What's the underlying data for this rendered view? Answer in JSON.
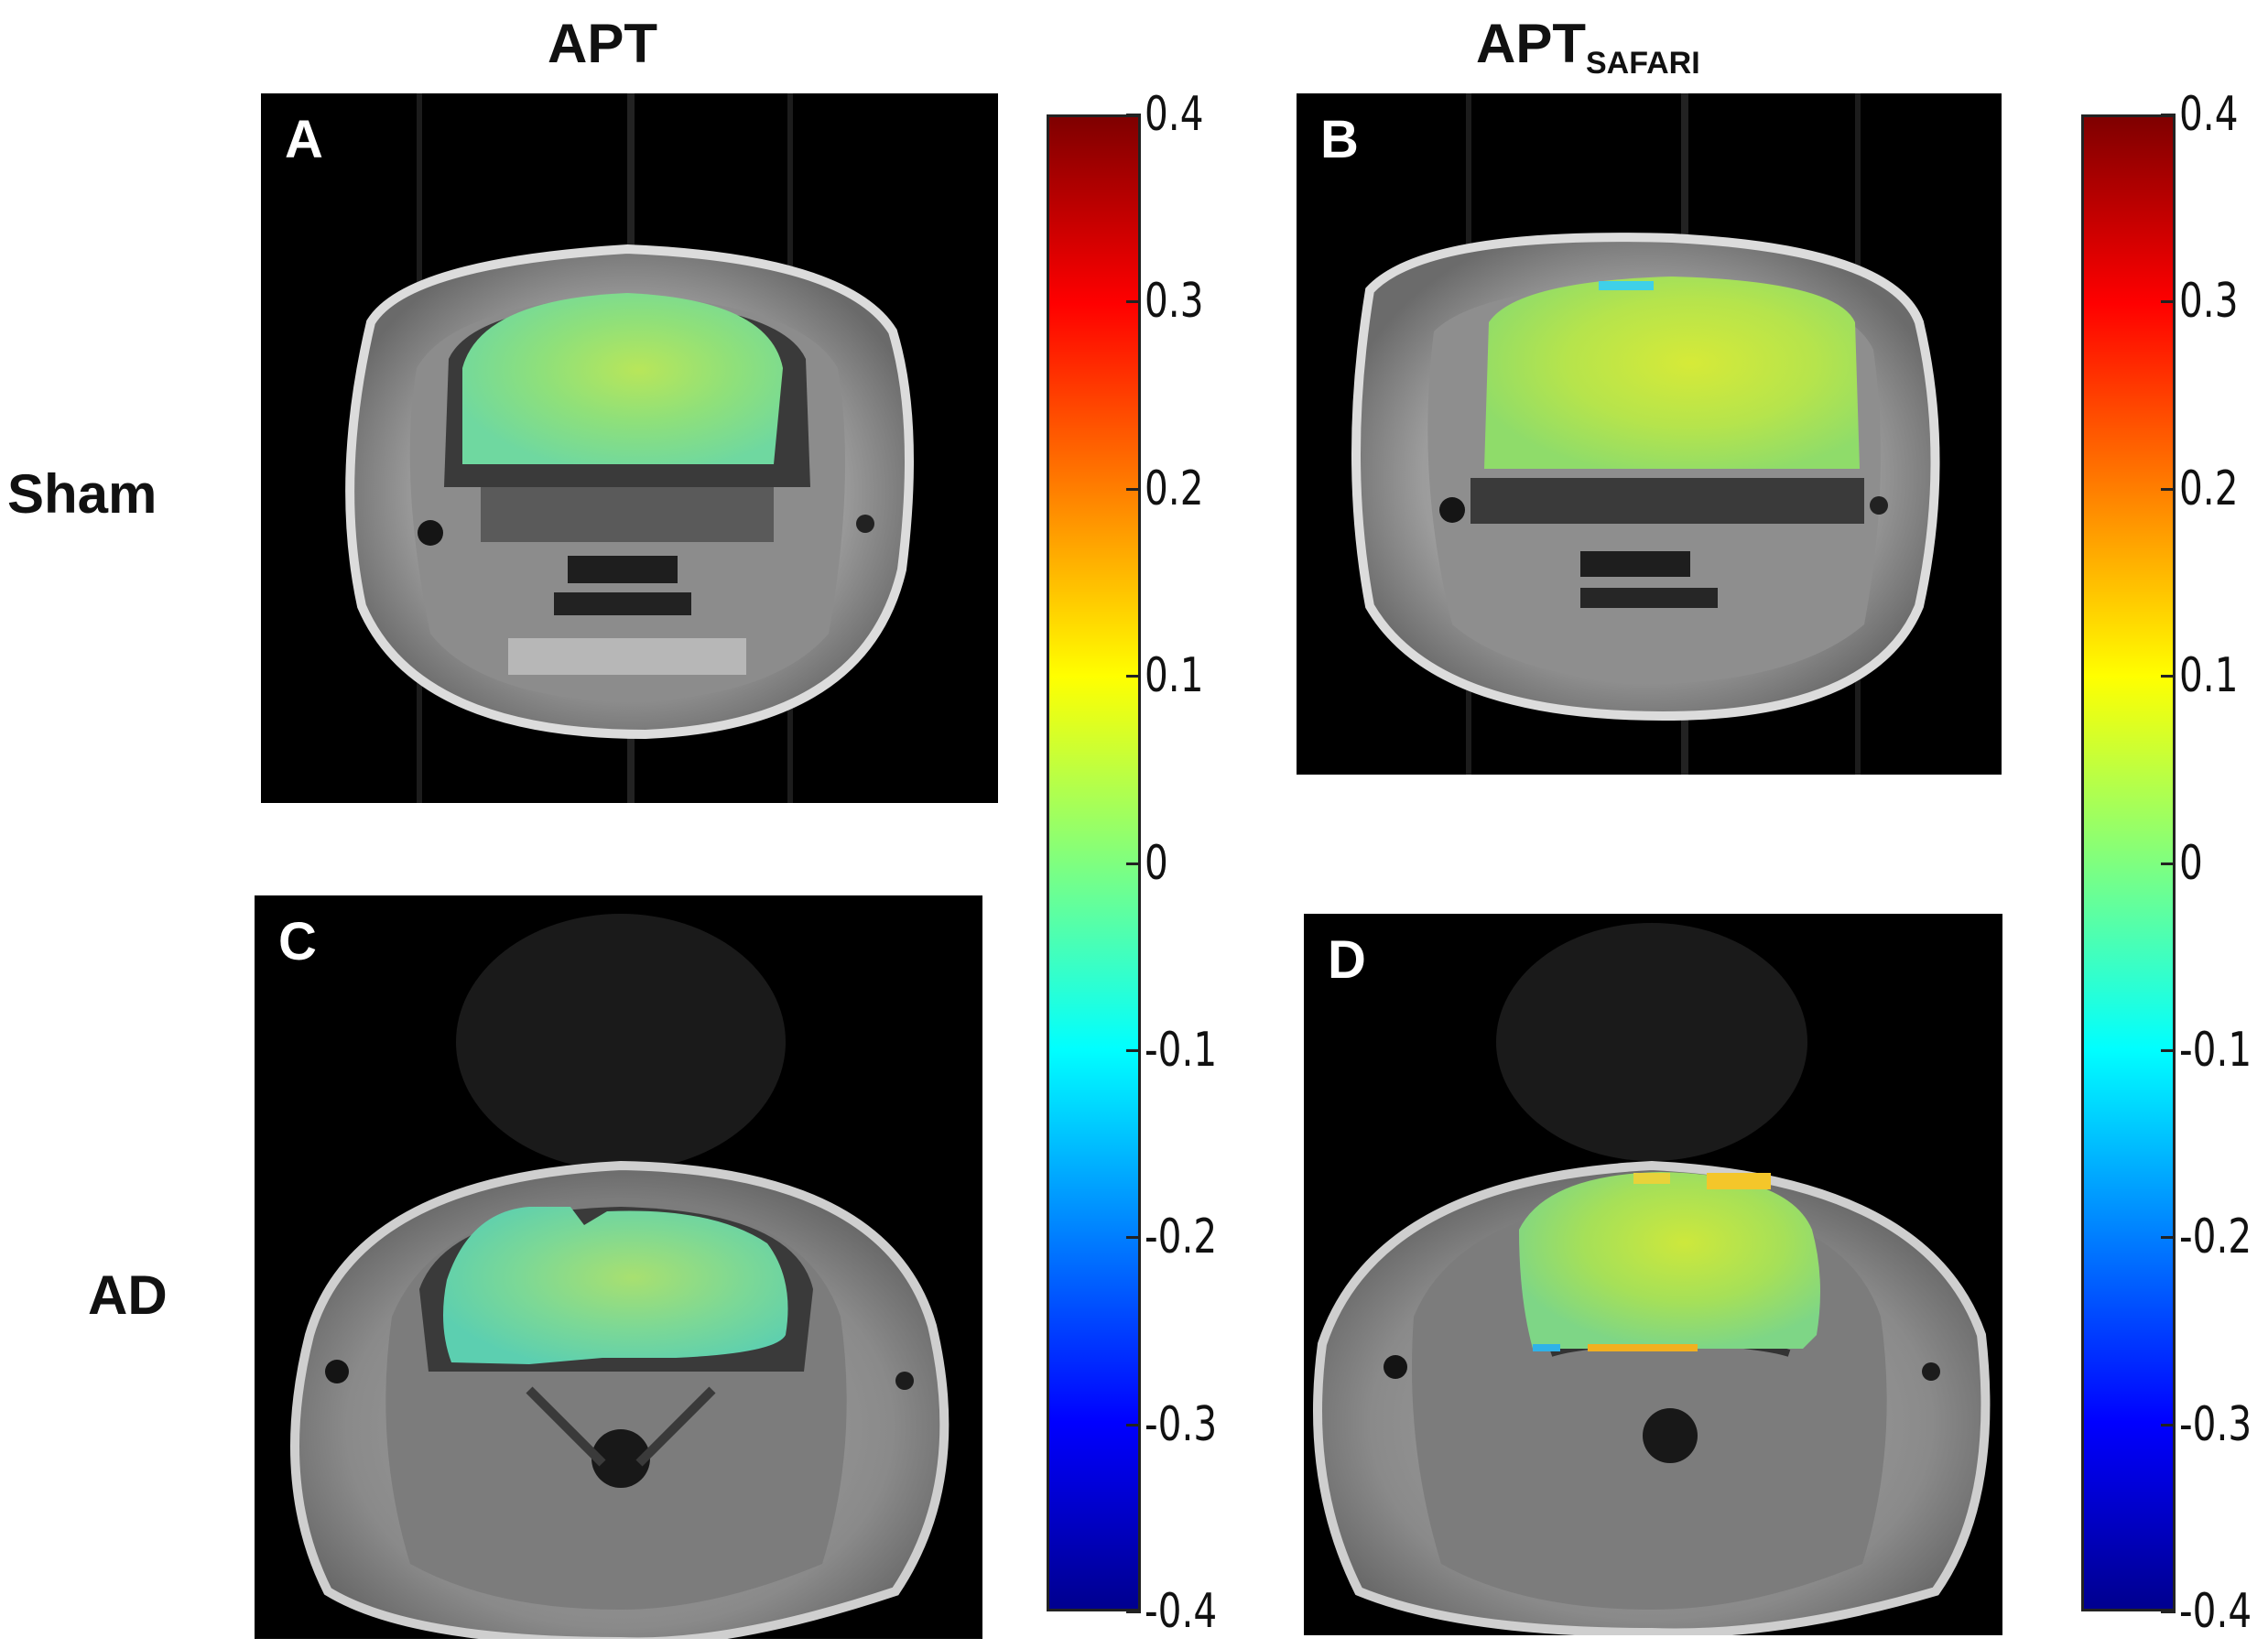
{
  "columns": {
    "apt": {
      "title": "APT"
    },
    "apt_safari": {
      "title": "APT",
      "subscript": "SAFARI"
    }
  },
  "rows": {
    "sham": "Sham",
    "ad": "AD"
  },
  "panels": {
    "a": "A",
    "b": "B",
    "c": "C",
    "d": "D"
  },
  "colorbar": {
    "colormap": "jet",
    "range": [
      -0.4,
      0.4
    ],
    "ticks": [
      "0.4",
      "0.3",
      "0.2",
      "0.1",
      "0",
      "-0.1",
      "-0.2",
      "-0.3",
      "-0.4"
    ]
  }
}
